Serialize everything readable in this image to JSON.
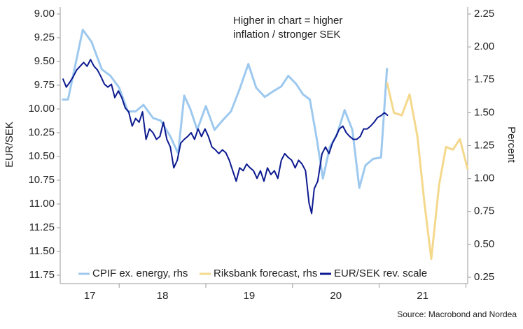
{
  "chart_data": {
    "type": "line",
    "annotation": [
      "Higher in chart = higher",
      "inflation / stronger SEK"
    ],
    "source": "Source: Macrobond and Nordea",
    "ylabel": "EUR/SEK",
    "y2label": "Percent",
    "xlim": [
      17.32,
      22.02
    ],
    "x_boundaries": [
      18,
      19,
      20,
      21,
      22
    ],
    "xticks": [
      {
        "value": 17.5,
        "label": "17"
      },
      {
        "value": 18.5,
        "label": "18"
      },
      {
        "value": 19.5,
        "label": "19"
      },
      {
        "value": 20.5,
        "label": "20"
      },
      {
        "value": 21.5,
        "label": "21"
      }
    ],
    "ylim": [
      9,
      11.75
    ],
    "y_inverted": true,
    "yticks": [
      {
        "value": 9,
        "label": "9.00"
      },
      9.25,
      {
        "value": 9.5,
        "label": "9.50"
      },
      9.75,
      {
        "value": 10,
        "label": "10.00"
      },
      10.25,
      {
        "value": 10.5,
        "label": "10.50"
      },
      10.75,
      {
        "value": 11,
        "label": "11.00"
      },
      11.25,
      {
        "value": 11.5,
        "label": "11.50"
      },
      11.75
    ],
    "y2lim": [
      0.25,
      2.25
    ],
    "y2ticks": [
      0.25,
      {
        "value": 0.5,
        "label": "0.50"
      },
      0.75,
      {
        "value": 1,
        "label": "1.00"
      },
      1.25,
      {
        "value": 1.5,
        "label": "1.50"
      },
      1.75,
      {
        "value": 2,
        "label": "2.00"
      },
      2.25
    ],
    "legend": "bottom",
    "series": [
      {
        "name": "CPIF ex. energy, rhs",
        "color": "#9ec9ef",
        "axis": "y2",
        "x": [
          17.34,
          17.41,
          17.49,
          17.58,
          17.68,
          17.8,
          17.9,
          18.0,
          18.1,
          18.19,
          18.28,
          18.39,
          18.48,
          18.59,
          18.68,
          18.75,
          18.82,
          18.9,
          19.0,
          19.1,
          19.19,
          19.29,
          19.39,
          19.49,
          19.58,
          19.68,
          19.77,
          19.87,
          19.95,
          20.04,
          20.12,
          20.2,
          20.28,
          20.35,
          20.43,
          20.51,
          20.6,
          20.69,
          20.77,
          20.84,
          20.93,
          21.02,
          21.09
        ],
        "values": [
          1.6,
          1.6,
          1.85,
          2.13,
          2.04,
          1.83,
          1.78,
          1.69,
          1.51,
          1.51,
          1.56,
          1.46,
          1.44,
          1.32,
          1.19,
          1.63,
          1.53,
          1.37,
          1.55,
          1.37,
          1.44,
          1.51,
          1.68,
          1.87,
          1.69,
          1.62,
          1.66,
          1.7,
          1.78,
          1.72,
          1.64,
          1.6,
          1.3,
          1.0,
          1.24,
          1.33,
          1.52,
          1.37,
          0.93,
          1.1,
          1.15,
          1.16,
          1.84
        ]
      },
      {
        "name": "Riksbank forecast, rhs",
        "color": "#f4d88c",
        "axis": "y2",
        "x": [
          21.09,
          21.17,
          21.26,
          21.35,
          21.44,
          21.52,
          21.6,
          21.69,
          21.77,
          21.85,
          21.93,
          22.02
        ],
        "values": [
          1.73,
          1.5,
          1.48,
          1.64,
          1.32,
          0.82,
          0.39,
          0.95,
          1.24,
          1.22,
          1.3,
          1.07
        ]
      },
      {
        "name": "EUR/SEK rev. scale",
        "color": "#0c1a8f",
        "x": [
          17.35,
          17.39,
          17.43,
          17.47,
          17.51,
          17.55,
          17.59,
          17.63,
          17.67,
          17.71,
          17.75,
          17.79,
          17.83,
          17.87,
          17.91,
          17.95,
          17.99,
          18.03,
          18.07,
          18.11,
          18.15,
          18.19,
          18.23,
          18.27,
          18.31,
          18.35,
          18.39,
          18.43,
          18.47,
          18.51,
          18.55,
          18.59,
          18.63,
          18.67,
          18.71,
          18.75,
          18.79,
          18.83,
          18.87,
          18.91,
          18.95,
          18.99,
          19.03,
          19.07,
          19.11,
          19.15,
          19.19,
          19.23,
          19.27,
          19.31,
          19.35,
          19.39,
          19.43,
          19.47,
          19.51,
          19.55,
          19.59,
          19.63,
          19.67,
          19.71,
          19.75,
          19.79,
          19.83,
          19.87,
          19.91,
          19.95,
          19.99,
          20.03,
          20.07,
          20.11,
          20.15,
          20.19,
          20.22,
          20.25,
          20.29,
          20.34,
          20.38,
          20.42,
          20.46,
          20.5,
          20.54,
          20.58,
          20.62,
          20.66,
          20.7,
          20.74,
          20.78,
          20.82,
          20.86,
          20.9,
          20.94,
          20.98,
          21.02,
          21.06,
          21.1
        ],
        "values": [
          9.68,
          9.77,
          9.72,
          9.66,
          9.59,
          9.55,
          9.51,
          9.55,
          9.48,
          9.55,
          9.59,
          9.66,
          9.74,
          9.77,
          9.74,
          9.88,
          9.81,
          9.88,
          9.99,
          10.03,
          10.18,
          10.1,
          10.14,
          10.03,
          10.32,
          10.21,
          10.25,
          10.32,
          10.29,
          10.14,
          10.32,
          10.4,
          10.62,
          10.54,
          10.36,
          10.32,
          10.29,
          10.25,
          10.32,
          10.21,
          10.29,
          10.21,
          10.29,
          10.4,
          10.43,
          10.47,
          10.43,
          10.46,
          10.54,
          10.65,
          10.76,
          10.62,
          10.65,
          10.58,
          10.62,
          10.65,
          10.73,
          10.65,
          10.76,
          10.62,
          10.69,
          10.65,
          10.73,
          10.54,
          10.47,
          10.51,
          10.54,
          10.62,
          10.54,
          10.58,
          10.65,
          10.99,
          11.1,
          10.84,
          10.76,
          10.47,
          10.4,
          10.47,
          10.36,
          10.29,
          10.21,
          10.18,
          10.25,
          10.29,
          10.32,
          10.32,
          10.29,
          10.21,
          10.21,
          10.18,
          10.14,
          10.09,
          10.07,
          10.04,
          10.07
        ]
      }
    ]
  }
}
